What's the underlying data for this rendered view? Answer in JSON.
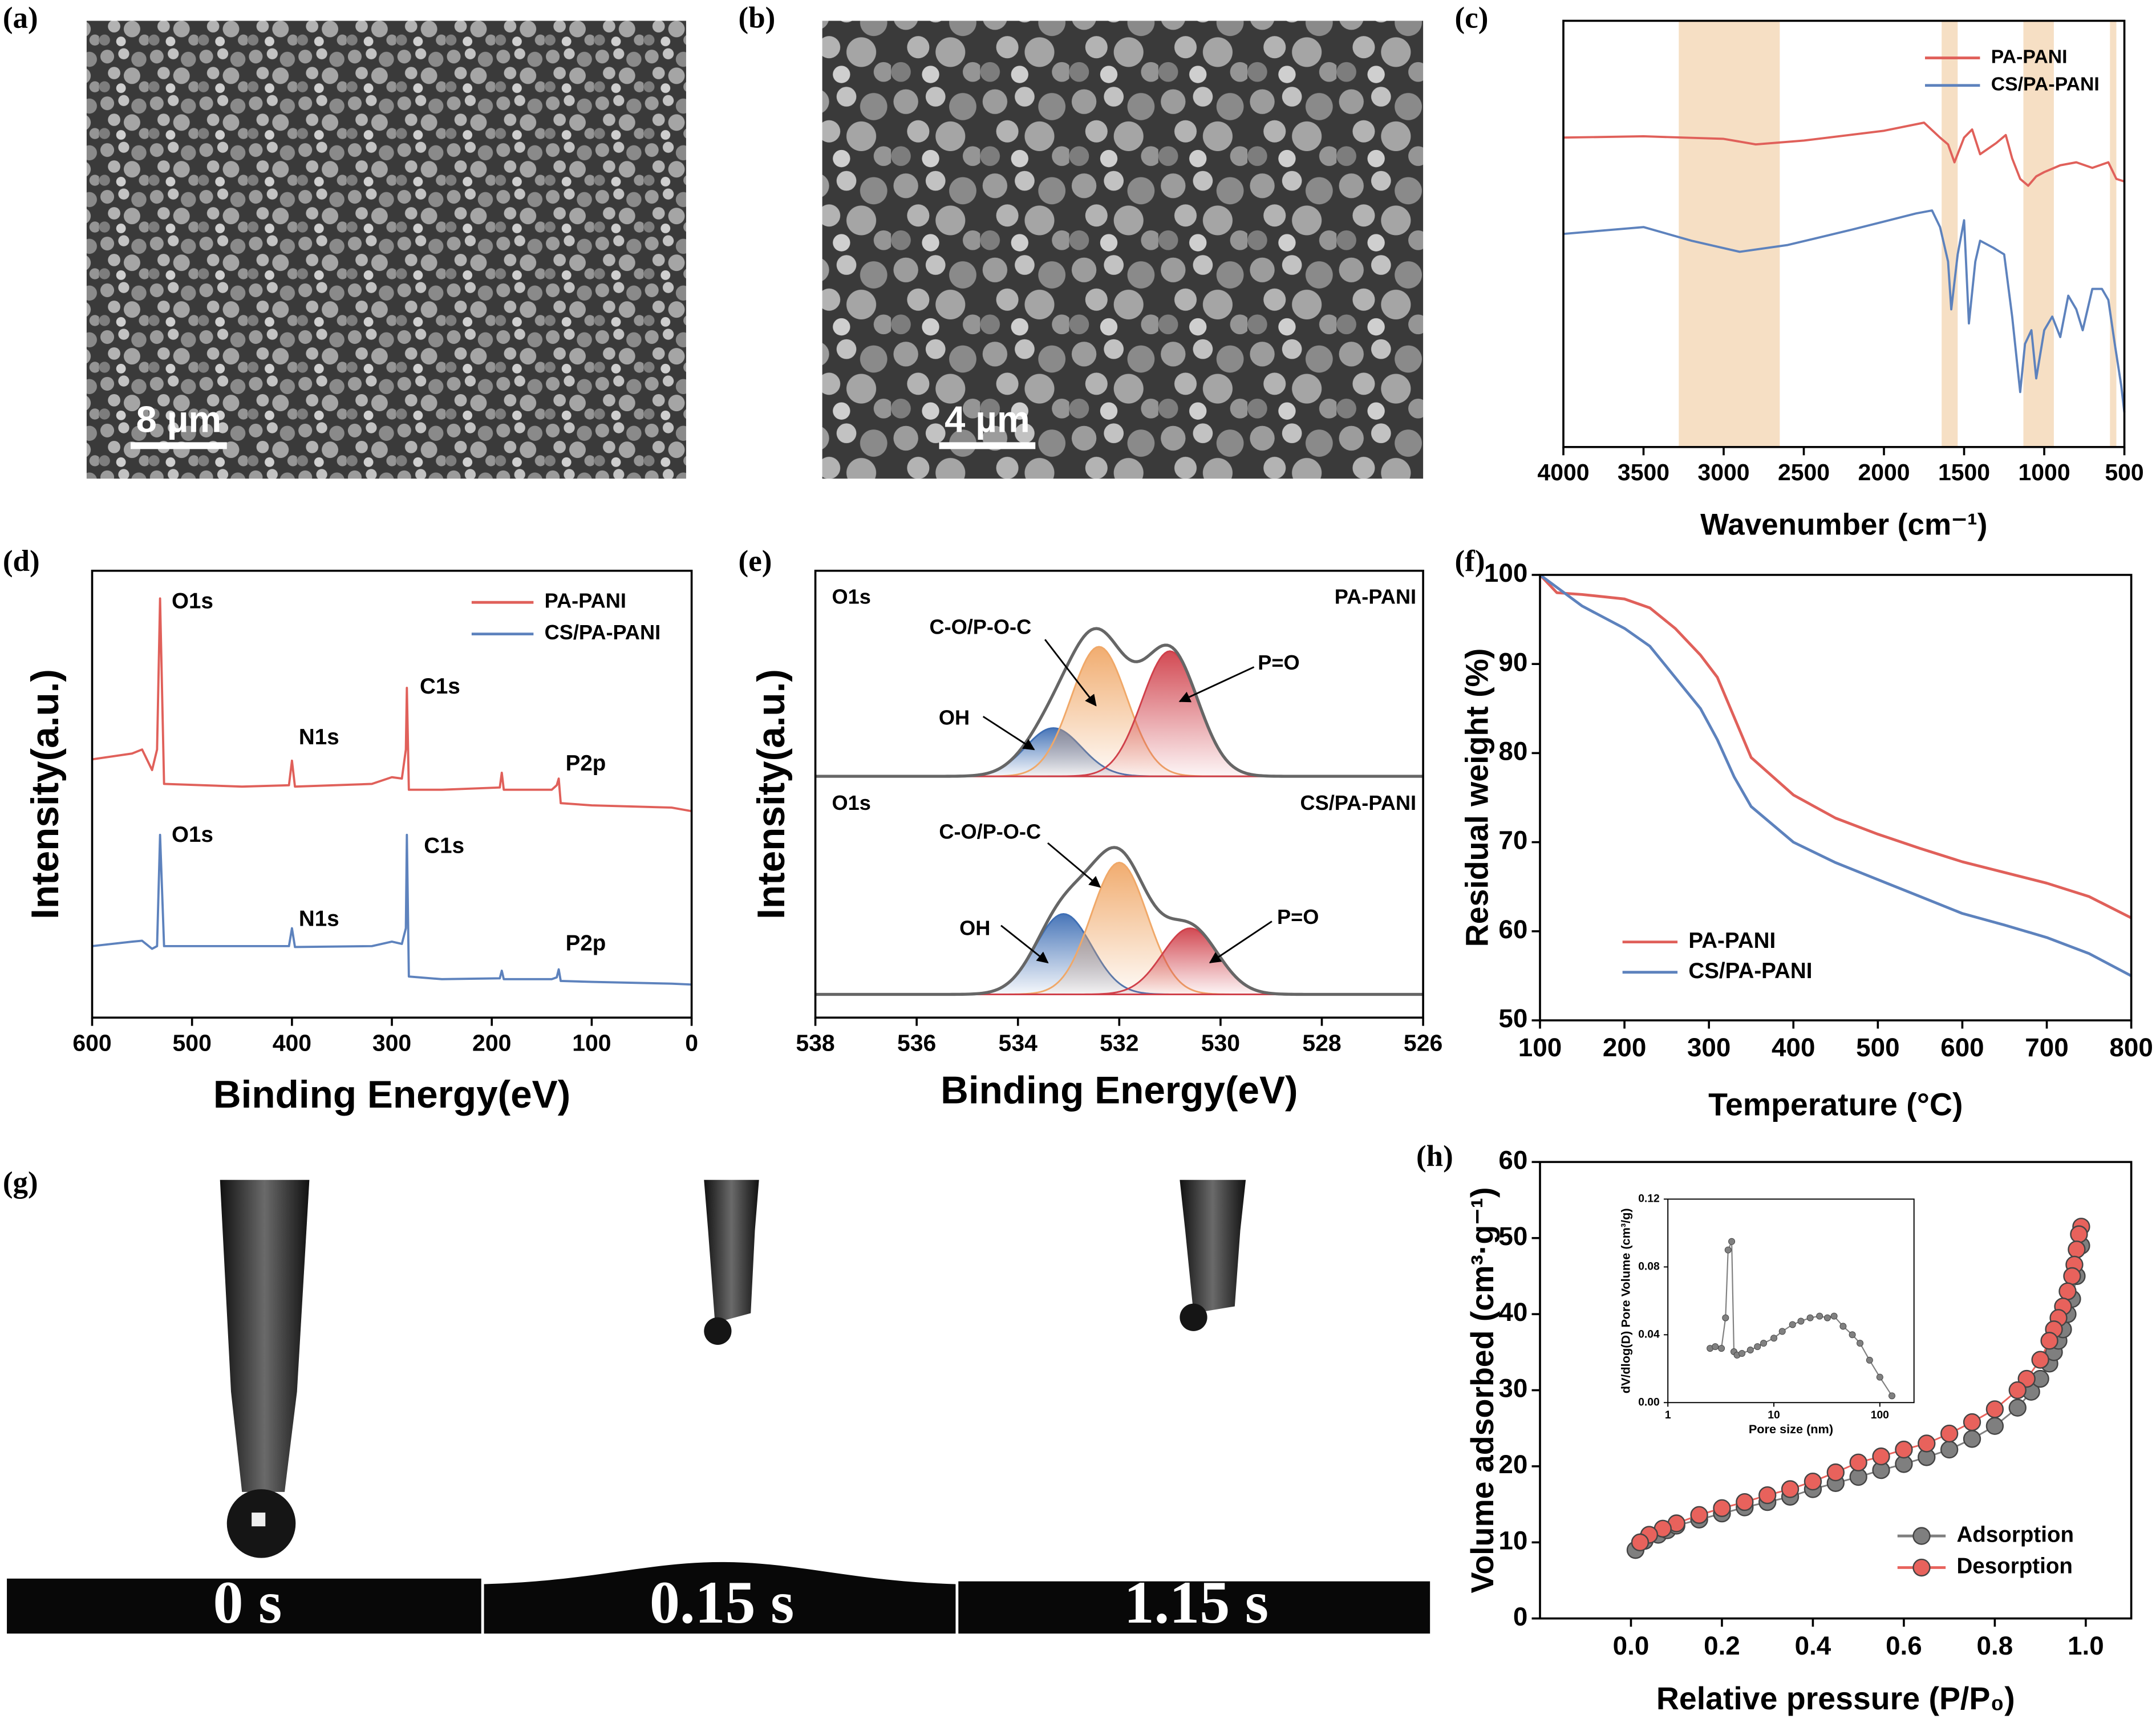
{
  "panel_labels": [
    "(a)",
    "(b)",
    "(c)",
    "(d)",
    "(e)",
    "(f)",
    "(g)",
    "(h)"
  ],
  "images": [
    {
      "scale_bar": "8 µm"
    },
    {
      "scale_bar": "4 µm"
    }
  ],
  "contact_angle_times": [
    "0 s",
    "0.15 s",
    "1.15 s"
  ],
  "chart_data": [
    {
      "type": "line",
      "xlabel": "Wavenumber (cm⁻¹)",
      "xlim": [
        4000,
        500
      ],
      "xticks": [
        4000,
        3500,
        3000,
        2500,
        2000,
        1500,
        1000,
        500
      ],
      "ylim": [
        0,
        100
      ],
      "bands": [
        [
          3280,
          2650
        ],
        [
          1640,
          1540
        ],
        [
          1130,
          940
        ],
        [
          590,
          550
        ]
      ],
      "band_color": "#f6dfc4",
      "legend": "upper right",
      "series": [
        {
          "name": "PA-PANI",
          "color": "#e0605a",
          "x": [
            4000,
            3500,
            3000,
            2800,
            2500,
            2000,
            1750,
            1650,
            1600,
            1560,
            1500,
            1450,
            1400,
            1300,
            1240,
            1200,
            1150,
            1100,
            1050,
            1000,
            900,
            800,
            700,
            600,
            550,
            500
          ],
          "values": [
            72.6,
            72.9,
            72.3,
            71.0,
            71.9,
            74.2,
            76.1,
            72.6,
            71.0,
            66.8,
            72.6,
            74.5,
            68.7,
            71.3,
            73.2,
            67.7,
            62.9,
            61.3,
            63.5,
            64.5,
            66.1,
            66.8,
            65.5,
            66.8,
            62.9,
            62.3
          ]
        },
        {
          "name": "CS/PA-PANI",
          "color": "#5d82bd",
          "x": [
            4000,
            3500,
            3200,
            2900,
            2600,
            2200,
            1800,
            1700,
            1650,
            1600,
            1580,
            1540,
            1500,
            1470,
            1430,
            1400,
            1320,
            1250,
            1200,
            1150,
            1120,
            1080,
            1050,
            1000,
            950,
            900,
            850,
            800,
            760,
            700,
            640,
            600,
            560,
            520,
            500
          ],
          "values": [
            50,
            51.6,
            48.4,
            45.8,
            47.4,
            51,
            54.8,
            55.5,
            51.6,
            43.5,
            32.3,
            45.2,
            53.2,
            29,
            43.5,
            48.4,
            46.8,
            45.2,
            30.6,
            12.9,
            24.2,
            27.4,
            16.1,
            27.4,
            30.6,
            25.8,
            35.5,
            32.3,
            27.4,
            37.1,
            37.1,
            34.5,
            24.2,
            14.5,
            8.1
          ]
        }
      ]
    },
    {
      "type": "line",
      "xlabel": "Binding Energy(eV)",
      "ylabel": "Intensity(a.u.)",
      "xlim": [
        600,
        0
      ],
      "xticks": [
        600,
        500,
        400,
        300,
        200,
        100,
        0
      ],
      "ylim": [
        0,
        100
      ],
      "legend": "upper right",
      "series": [
        {
          "name": "PA-PANI",
          "color": "#e0605a",
          "peak_labels": [
            "O1s",
            "N1s",
            "C1s",
            "P2p"
          ],
          "x": [
            600,
            560,
            550,
            540,
            535,
            532,
            528,
            450,
            403,
            400,
            397,
            320,
            300,
            290,
            286,
            285,
            283,
            250,
            192,
            190,
            188,
            140,
            135,
            133,
            131,
            100,
            20,
            0
          ],
          "values": [
            57.8,
            59.1,
            60,
            55.4,
            60,
            93.8,
            52.3,
            51.7,
            52,
            57.5,
            51.7,
            52.3,
            53.8,
            53.5,
            60,
            73.8,
            51,
            51,
            51.5,
            54.8,
            51,
            51,
            52,
            53.5,
            48,
            47.5,
            47,
            46.2
          ]
        },
        {
          "name": "CS/PA-PANI",
          "color": "#5d82bd",
          "peak_labels": [
            "O1s",
            "N1s",
            "C1s",
            "P2p"
          ],
          "x": [
            600,
            560,
            550,
            540,
            535,
            532,
            528,
            450,
            403,
            400,
            397,
            320,
            300,
            290,
            286,
            285,
            283,
            250,
            192,
            190,
            188,
            140,
            135,
            133,
            131,
            100,
            20,
            0
          ],
          "values": [
            16,
            17,
            17.2,
            15.4,
            16,
            40.9,
            16,
            16,
            16,
            20,
            15.8,
            16,
            17,
            16.5,
            20,
            40.9,
            9.2,
            8.6,
            8.8,
            10.5,
            8.6,
            8.6,
            9,
            10.8,
            8.2,
            8,
            7.6,
            7.4
          ]
        }
      ]
    },
    {
      "type": "xps_fit",
      "xlabel": "Binding Energy(eV)",
      "ylabel": "Intensity(a.u.)",
      "xlim": [
        538,
        526
      ],
      "xticks": [
        538,
        536,
        534,
        532,
        530,
        528,
        526
      ],
      "ylim": [
        0,
        100
      ],
      "envelope_color": "#666666",
      "spectra": [
        {
          "name": "PA-PANI",
          "region": "O1s",
          "baseline": 54,
          "baseline_color": "#e0605a",
          "peaks": [
            {
              "label": "OH",
              "center": 533.3,
              "height": 10.8,
              "fwhm": 1.3,
              "color": "#3f6fb5"
            },
            {
              "label": "C-O/P-O-C",
              "center": 532.4,
              "height": 29,
              "fwhm": 1.3,
              "color": "#f0a868"
            },
            {
              "label": "P=O",
              "center": 531,
              "height": 28,
              "fwhm": 1.3,
              "color": "#d0404a"
            }
          ]
        },
        {
          "name": "CS/PA-PANI",
          "region": "O1s",
          "baseline": 5.2,
          "baseline_color": "#5d82bd",
          "peaks": [
            {
              "label": "OH",
              "center": 533.1,
              "height": 18,
              "fwhm": 1.3,
              "color": "#3f6fb5"
            },
            {
              "label": "C-O/P-O-C",
              "center": 532.0,
              "height": 29.5,
              "fwhm": 1.3,
              "color": "#f0a868"
            },
            {
              "label": "P=O",
              "center": 530.6,
              "height": 14.8,
              "fwhm": 1.3,
              "color": "#d0404a"
            }
          ]
        }
      ]
    },
    {
      "type": "line",
      "xlabel": "Temperature (°C)",
      "ylabel": "Residual weight (%)",
      "xlim": [
        100,
        800
      ],
      "xticks": [
        100,
        200,
        300,
        400,
        500,
        600,
        700,
        800
      ],
      "ylim": [
        50,
        100
      ],
      "yticks": [
        50,
        60,
        70,
        80,
        90,
        100
      ],
      "legend": "lower left",
      "series": [
        {
          "name": "PA-PANI",
          "color": "#e0605a",
          "x": [
            100,
            120,
            150,
            200,
            230,
            260,
            290,
            310,
            330,
            350,
            400,
            450,
            500,
            550,
            600,
            650,
            700,
            750,
            800
          ],
          "values": [
            100,
            98,
            97.8,
            97.3,
            96.3,
            94,
            91,
            88.5,
            84,
            79.5,
            75.3,
            72.7,
            70.9,
            69.3,
            67.8,
            66.6,
            65.4,
            63.9,
            61.5
          ]
        },
        {
          "name": "CS/PA-PANI",
          "color": "#5d82bd",
          "x": [
            100,
            150,
            200,
            230,
            260,
            290,
            310,
            330,
            350,
            400,
            450,
            500,
            550,
            600,
            650,
            700,
            750,
            800
          ],
          "values": [
            100,
            96.5,
            94,
            92,
            88.5,
            85,
            81.5,
            77.3,
            74,
            70,
            67.7,
            65.8,
            63.9,
            62,
            60.7,
            59.3,
            57.5,
            55
          ]
        }
      ]
    },
    {
      "type": "line",
      "markers": true,
      "xlabel": "Relative pressure (P/P₀)",
      "ylabel": "Volume adsorbed (cm³·g⁻¹)",
      "xlim": [
        -0.2,
        1.1
      ],
      "xticks": [
        {
          "value": 0,
          "label": "0.0"
        },
        {
          "value": 0.2,
          "label": "0.2"
        },
        {
          "value": 0.4,
          "label": "0.4"
        },
        {
          "value": 0.6,
          "label": "0.6"
        },
        {
          "value": 0.8,
          "label": "0.8"
        },
        {
          "value": 1,
          "label": "1.0"
        }
      ],
      "ylim": [
        0,
        60
      ],
      "yticks": [
        0,
        10,
        20,
        30,
        40,
        50,
        60
      ],
      "legend": "lower right",
      "series": [
        {
          "name": "Adsorption",
          "color": "#7f7f7f",
          "x": [
            0.01,
            0.03,
            0.06,
            0.08,
            0.1,
            0.15,
            0.2,
            0.25,
            0.3,
            0.35,
            0.4,
            0.45,
            0.5,
            0.55,
            0.6,
            0.65,
            0.7,
            0.75,
            0.8,
            0.85,
            0.88,
            0.9,
            0.92,
            0.93,
            0.94,
            0.95,
            0.96,
            0.97,
            0.98,
            0.99
          ],
          "values": [
            9,
            10.2,
            11,
            11.6,
            12.2,
            13,
            13.8,
            14.6,
            15.3,
            16,
            17,
            17.8,
            18.6,
            19.5,
            20.3,
            21.2,
            22.2,
            23.6,
            25.3,
            27.7,
            29.8,
            31.5,
            33.5,
            35,
            36.5,
            38,
            40,
            42,
            45,
            49
          ]
        },
        {
          "name": "Desorption",
          "color": "#e8625c",
          "x": [
            0.99,
            0.985,
            0.98,
            0.975,
            0.97,
            0.96,
            0.95,
            0.94,
            0.93,
            0.92,
            0.9,
            0.87,
            0.85,
            0.8,
            0.75,
            0.7,
            0.65,
            0.6,
            0.55,
            0.5,
            0.45,
            0.4,
            0.35,
            0.3,
            0.25,
            0.2,
            0.15,
            0.1,
            0.07,
            0.04,
            0.02
          ],
          "values": [
            51.5,
            50.5,
            48.5,
            46.5,
            45,
            43,
            41,
            39.5,
            38,
            36.5,
            34,
            31.5,
            30,
            27.5,
            25.8,
            24.3,
            23,
            22.2,
            21.3,
            20.5,
            19.2,
            18,
            17,
            16.2,
            15.3,
            14.5,
            13.6,
            12.5,
            11.8,
            11,
            10
          ]
        }
      ]
    },
    {
      "type": "line",
      "markers": true,
      "xlog": true,
      "xlabel": "Pore size (nm)",
      "ylabel": "dV/dlog(D) Pore Volume (cm³/g)",
      "xlim": [
        1,
        210
      ],
      "xticks": [
        1,
        10,
        100
      ],
      "ylim": [
        0,
        0.12
      ],
      "yticks": [
        {
          "value": 0,
          "label": "0.00"
        },
        {
          "value": 0.04,
          "label": "0.04"
        },
        {
          "value": 0.08,
          "label": "0.08"
        },
        {
          "value": 0.12,
          "label": "0.12"
        }
      ],
      "color": "#808080",
      "x": [
        2.5,
        2.8,
        3.2,
        3.5,
        3.7,
        4.0,
        4.2,
        4.5,
        5,
        6,
        7,
        8,
        10,
        12,
        15,
        18,
        22,
        27,
        32,
        37,
        45,
        55,
        65,
        80,
        100,
        130
      ],
      "values": [
        0.032,
        0.033,
        0.032,
        0.05,
        0.09,
        0.095,
        0.03,
        0.028,
        0.029,
        0.031,
        0.033,
        0.035,
        0.038,
        0.042,
        0.046,
        0.048,
        0.05,
        0.051,
        0.05,
        0.051,
        0.045,
        0.04,
        0.035,
        0.025,
        0.015,
        0.004
      ]
    }
  ]
}
